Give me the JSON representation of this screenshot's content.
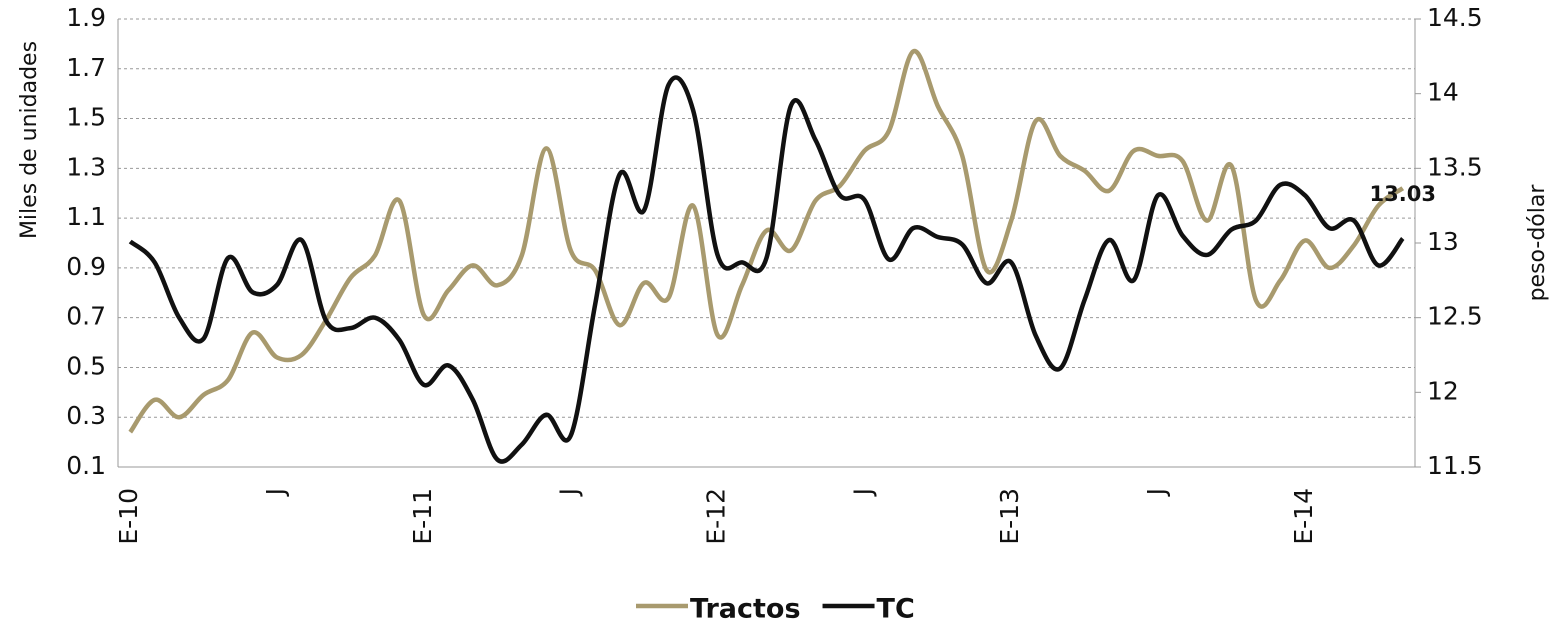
{
  "chart_data": {
    "type": "line",
    "y_label": "Miles de unidades",
    "y2_label": "peso-dólar",
    "categories": [
      "E-10",
      null,
      null,
      null,
      null,
      null,
      "J",
      null,
      null,
      null,
      null,
      null,
      "E-11",
      null,
      null,
      null,
      null,
      null,
      "J",
      null,
      null,
      null,
      null,
      null,
      "E-12",
      null,
      null,
      null,
      null,
      null,
      "J",
      null,
      null,
      null,
      null,
      null,
      "E-13",
      null,
      null,
      null,
      null,
      null,
      "J",
      null,
      null,
      null,
      null,
      null,
      "E-14",
      null,
      null,
      null,
      null
    ],
    "series": [
      {
        "name": "Tractos",
        "color": "#a89a6e",
        "values": [
          0.24,
          0.37,
          0.3,
          0.39,
          0.45,
          0.64,
          0.54,
          0.55,
          0.69,
          0.86,
          0.95,
          1.17,
          0.71,
          0.81,
          0.91,
          0.83,
          0.95,
          1.38,
          0.97,
          0.89,
          0.67,
          0.84,
          0.78,
          1.15,
          0.63,
          0.83,
          1.05,
          0.97,
          1.17,
          1.23,
          1.37,
          1.45,
          1.77,
          1.55,
          1.35,
          0.89,
          1.09,
          1.49,
          1.35,
          1.29,
          1.21,
          1.37,
          1.35,
          1.33,
          1.09,
          1.31,
          0.77,
          0.85,
          1.01,
          0.9,
          0.99,
          1.15,
          1.22
        ]
      },
      {
        "name": "TC",
        "color": "#111111",
        "axis": "y2",
        "values": [
          13.01,
          12.87,
          12.5,
          12.36,
          12.9,
          12.67,
          12.72,
          13.02,
          12.48,
          12.43,
          12.5,
          12.35,
          12.05,
          12.18,
          11.95,
          11.55,
          11.65,
          11.85,
          11.71,
          12.59,
          13.46,
          13.22,
          14.06,
          13.89,
          12.92,
          12.87,
          12.9,
          13.92,
          13.69,
          13.32,
          13.29,
          12.89,
          13.1,
          13.04,
          12.99,
          12.73,
          12.87,
          12.38,
          12.16,
          12.62,
          13.02,
          12.75,
          13.32,
          13.05,
          12.92,
          13.09,
          13.15,
          13.39,
          13.32,
          13.1,
          13.15,
          12.85,
          13.03
        ]
      }
    ],
    "labeled_point": {
      "series": 1,
      "index": 52
    },
    "ylim": [
      0.1,
      1.9
    ],
    "yticks": [
      0.1,
      0.3,
      0.5,
      0.7,
      0.9,
      1.1,
      1.3,
      1.5,
      1.7,
      1.9
    ],
    "y2lim": [
      11.5,
      14.5
    ],
    "y2ticks": [
      11.5,
      12,
      12.5,
      13,
      13.5,
      14,
      14.5
    ],
    "grid": true,
    "legend": "bottom"
  }
}
